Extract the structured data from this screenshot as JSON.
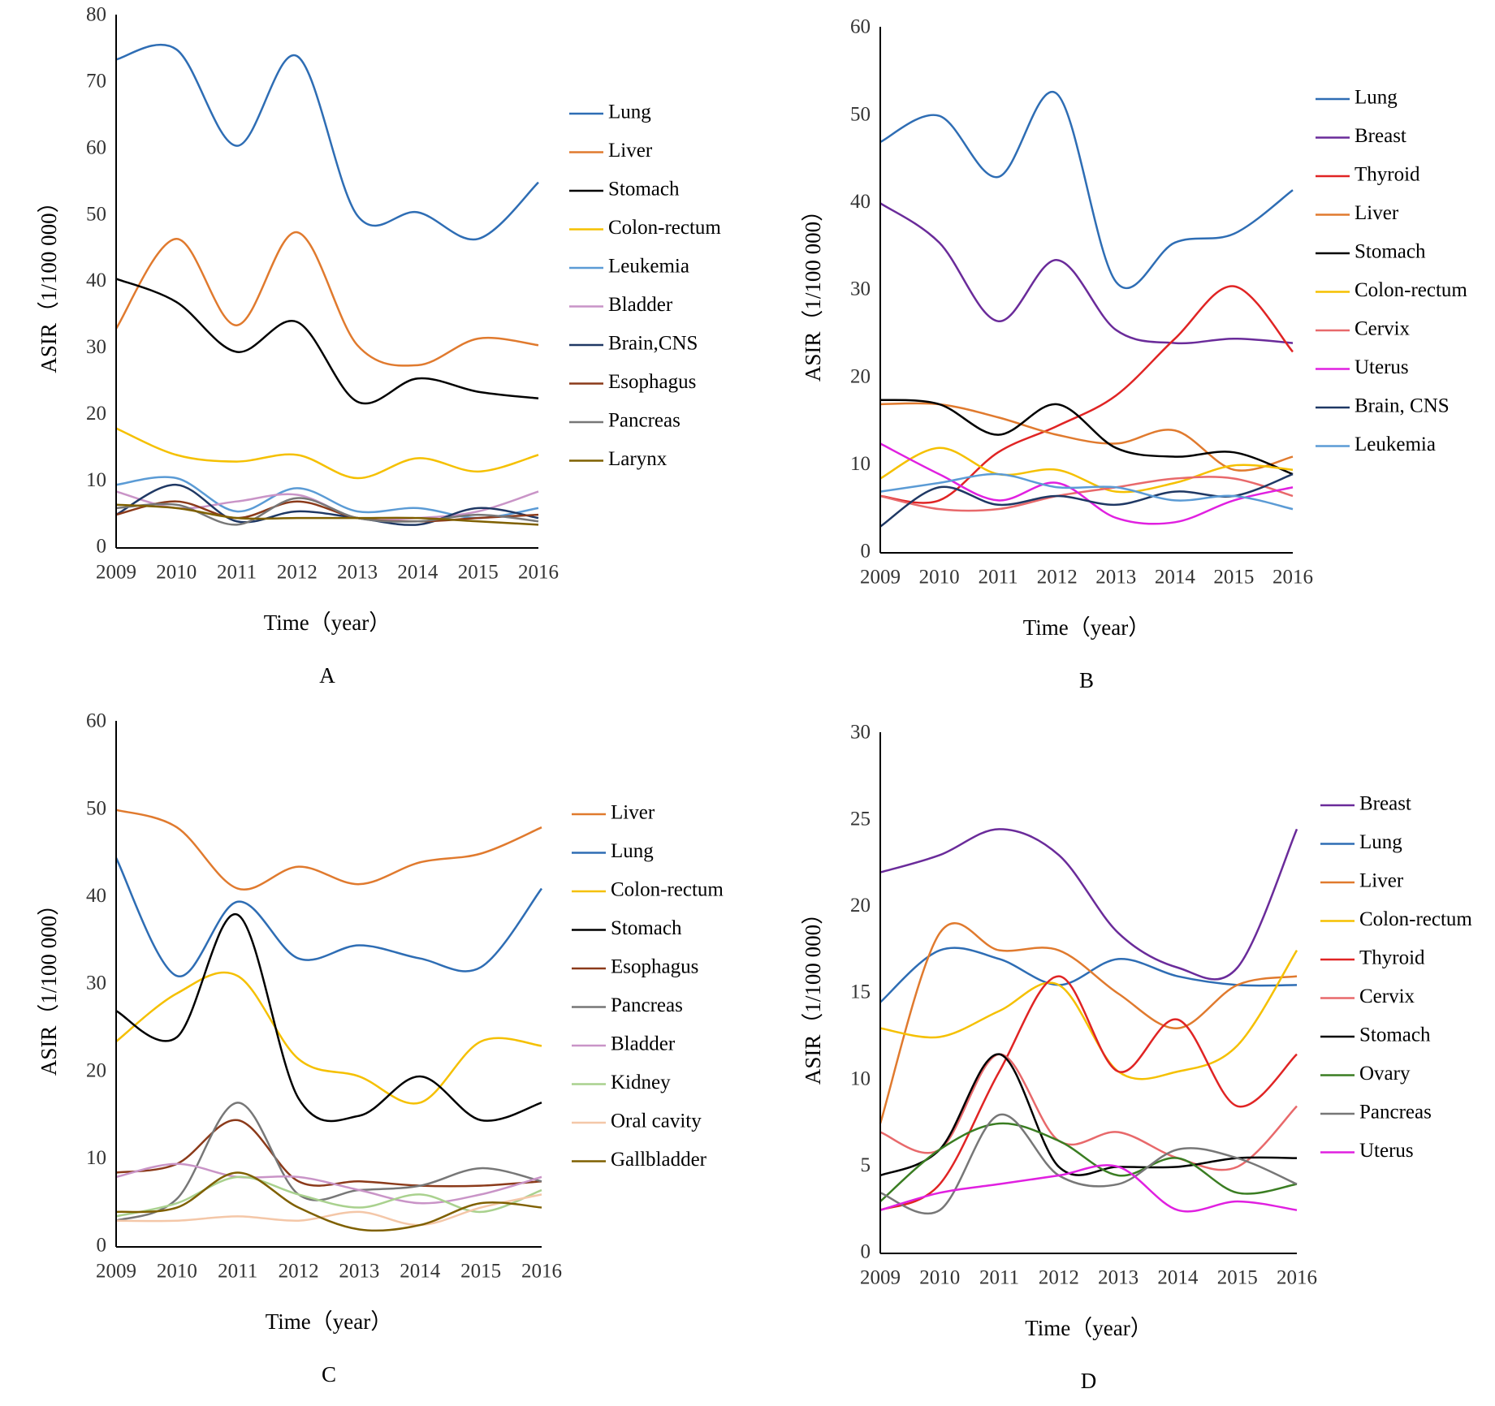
{
  "chart_data": [
    {
      "type": "line",
      "label": "A",
      "y_label": "ASIR（1/100 000）",
      "x_label": "Time（year）",
      "categories": [
        "2009",
        "2010",
        "2011",
        "2012",
        "2013",
        "2014",
        "2015",
        "2016"
      ],
      "ylim": [
        0,
        80
      ],
      "yticks": [
        0,
        10,
        20,
        30,
        40,
        50,
        60,
        70,
        80
      ],
      "grid": false,
      "legend": "right",
      "series": [
        {
          "name": "Lung",
          "color": "#2e6db4",
          "values": [
            73.5,
            75,
            60.5,
            74,
            50,
            50.5,
            46.5,
            55
          ]
        },
        {
          "name": "Liver",
          "color": "#e07a2e",
          "values": [
            33,
            46.5,
            33.5,
            47.5,
            30.5,
            27.5,
            31.5,
            30.5
          ]
        },
        {
          "name": "Stomach",
          "color": "#000000",
          "values": [
            40.5,
            37,
            29.5,
            34,
            22,
            25.5,
            23.5,
            22.5
          ]
        },
        {
          "name": "Colon-rectum",
          "color": "#f5c000",
          "values": [
            18,
            14,
            13,
            14,
            10.5,
            13.5,
            11.5,
            14
          ]
        },
        {
          "name": "Leukemia",
          "color": "#5b9bd5",
          "values": [
            9.5,
            10.5,
            5.5,
            9,
            5.5,
            6,
            4.5,
            6
          ]
        },
        {
          "name": "Bladder",
          "color": "#c994c7",
          "values": [
            8.5,
            6,
            7,
            8,
            4.5,
            4.5,
            5.5,
            8.5
          ]
        },
        {
          "name": "Brain,CNS",
          "color": "#1f3864",
          "values": [
            5,
            9.5,
            4,
            5.5,
            4.5,
            3.5,
            6,
            4.5
          ]
        },
        {
          "name": "Esophagus",
          "color": "#8b3a1a",
          "values": [
            5,
            7,
            4.5,
            7,
            4.5,
            4,
            4.5,
            5
          ]
        },
        {
          "name": "Pancreas",
          "color": "#777777",
          "values": [
            6,
            6.5,
            3.5,
            7.5,
            4.5,
            4,
            5,
            4
          ]
        },
        {
          "name": "Larynx",
          "color": "#7f6000",
          "values": [
            6.5,
            6,
            4.5,
            4.5,
            4.5,
            4.5,
            4,
            3.5
          ]
        }
      ]
    },
    {
      "type": "line",
      "label": "B",
      "y_label": "ASIR（1/100 000）",
      "x_label": "Time（year）",
      "categories": [
        "2009",
        "2010",
        "2011",
        "2012",
        "2013",
        "2014",
        "2015",
        "2016"
      ],
      "ylim": [
        0,
        60
      ],
      "yticks": [
        0,
        10,
        20,
        30,
        40,
        50,
        60
      ],
      "grid": false,
      "legend": "right",
      "series": [
        {
          "name": "Lung",
          "color": "#2e6db4",
          "values": [
            47,
            50,
            43,
            52.5,
            31,
            35.5,
            36.5,
            41.5
          ]
        },
        {
          "name": "Breast",
          "color": "#6a2b9a",
          "values": [
            40,
            35.5,
            26.5,
            33.5,
            25.5,
            24,
            24.5,
            24
          ]
        },
        {
          "name": "Thyroid",
          "color": "#e02424",
          "values": [
            6.5,
            6,
            11.5,
            14.5,
            18,
            24.5,
            30.5,
            23
          ]
        },
        {
          "name": "Liver",
          "color": "#e07a2e",
          "values": [
            17,
            17,
            15.5,
            13.5,
            12.5,
            14,
            9.5,
            11
          ]
        },
        {
          "name": "Stomach",
          "color": "#000000",
          "values": [
            17.5,
            17,
            13.5,
            17,
            12,
            11,
            11.5,
            9
          ]
        },
        {
          "name": "Colon-rectum",
          "color": "#f5c000",
          "values": [
            8.5,
            12,
            9,
            9.5,
            7,
            8,
            10,
            9.5
          ]
        },
        {
          "name": "Cervix",
          "color": "#e8696b",
          "values": [
            6.5,
            5,
            5,
            6.5,
            7.5,
            8.5,
            8.5,
            6.5
          ]
        },
        {
          "name": "Uterus",
          "color": "#e020e0",
          "values": [
            12.5,
            9,
            6,
            8,
            4,
            3.5,
            6,
            7.5
          ]
        },
        {
          "name": "Brain, CNS",
          "color": "#1f3864",
          "values": [
            3,
            7.5,
            5.5,
            6.5,
            5.5,
            7,
            6.5,
            9
          ]
        },
        {
          "name": "Leukemia",
          "color": "#5b9bd5",
          "values": [
            7,
            8,
            9,
            7.5,
            7.5,
            6,
            6.5,
            5
          ]
        }
      ]
    },
    {
      "type": "line",
      "label": "C",
      "y_label": "ASIR（1/100 000）",
      "x_label": "Time（year）",
      "categories": [
        "2009",
        "2010",
        "2011",
        "2012",
        "2013",
        "2014",
        "2015",
        "2016"
      ],
      "ylim": [
        0,
        60
      ],
      "yticks": [
        0,
        10,
        20,
        30,
        40,
        50,
        60
      ],
      "grid": false,
      "legend": "right",
      "series": [
        {
          "name": "Liver",
          "color": "#e07a2e",
          "values": [
            50,
            48,
            41,
            43.5,
            41.5,
            44,
            45,
            48
          ]
        },
        {
          "name": "Lung",
          "color": "#2e6db4",
          "values": [
            44.5,
            31,
            39.5,
            33,
            34.5,
            33,
            32,
            41
          ]
        },
        {
          "name": "Colon-rectum",
          "color": "#f5c000",
          "values": [
            23.5,
            29,
            31,
            21.5,
            19.5,
            16.5,
            23.5,
            23
          ]
        },
        {
          "name": "Stomach",
          "color": "#000000",
          "values": [
            27,
            24,
            38,
            17,
            15,
            19.5,
            14.5,
            16.5
          ]
        },
        {
          "name": "Esophagus",
          "color": "#8b3a1a",
          "values": [
            8.5,
            9.5,
            14.5,
            7.5,
            7.5,
            7,
            7,
            7.5
          ]
        },
        {
          "name": "Pancreas",
          "color": "#777777",
          "values": [
            3,
            5.5,
            16.5,
            6,
            6.5,
            7,
            9,
            7.5
          ]
        },
        {
          "name": "Bladder",
          "color": "#c994c7",
          "values": [
            8,
            9.5,
            8,
            8,
            6.5,
            5,
            6,
            8
          ]
        },
        {
          "name": "Kidney",
          "color": "#a9d18e",
          "values": [
            3.5,
            5,
            8,
            6,
            4.5,
            6,
            4,
            6.5
          ]
        },
        {
          "name": "Oral cavity",
          "color": "#f4c7a8",
          "values": [
            3,
            3,
            3.5,
            3,
            4,
            2.5,
            4.5,
            6
          ]
        },
        {
          "name": "Gallbladder",
          "color": "#7f6000",
          "values": [
            4,
            4.5,
            8.5,
            4.5,
            2,
            2.5,
            5,
            4.5
          ]
        }
      ]
    },
    {
      "type": "line",
      "label": "D",
      "y_label": "ASIR（1/100 000）",
      "x_label": "Time（year）",
      "categories": [
        "2009",
        "2010",
        "2011",
        "2012",
        "2013",
        "2014",
        "2015",
        "2016"
      ],
      "ylim": [
        0,
        30
      ],
      "yticks": [
        0,
        5,
        10,
        15,
        20,
        25,
        30
      ],
      "grid": false,
      "legend": "right",
      "series": [
        {
          "name": "Breast",
          "color": "#6a2b9a",
          "values": [
            22,
            23,
            24.5,
            23,
            18.5,
            16.5,
            16.5,
            24.5
          ]
        },
        {
          "name": "Lung",
          "color": "#2e6db4",
          "values": [
            14.5,
            17.5,
            17,
            15.5,
            17,
            16,
            15.5,
            15.5
          ]
        },
        {
          "name": "Liver",
          "color": "#e07a2e",
          "values": [
            7.5,
            18.5,
            17.5,
            17.5,
            15,
            13,
            15.5,
            16
          ]
        },
        {
          "name": "Colon-rectum",
          "color": "#f5c000",
          "values": [
            13,
            12.5,
            14,
            15.5,
            10.5,
            10.5,
            12,
            17.5
          ]
        },
        {
          "name": "Thyroid",
          "color": "#e02424",
          "values": [
            2.5,
            4,
            10.5,
            16,
            10.5,
            13.5,
            8.5,
            11.5
          ]
        },
        {
          "name": "Cervix",
          "color": "#e8696b",
          "values": [
            7,
            6,
            11.5,
            6.5,
            7,
            5.5,
            5,
            8.5
          ]
        },
        {
          "name": "Stomach",
          "color": "#000000",
          "values": [
            4.5,
            6,
            11.5,
            5,
            5,
            5,
            5.5,
            5.5
          ]
        },
        {
          "name": "Ovary",
          "color": "#3a7d22",
          "values": [
            3,
            6,
            7.5,
            6.5,
            4.5,
            5.5,
            3.5,
            4
          ]
        },
        {
          "name": "Pancreas",
          "color": "#777777",
          "values": [
            3.5,
            2.5,
            8,
            4.5,
            4,
            6,
            5.5,
            4
          ]
        },
        {
          "name": "Uterus",
          "color": "#e020e0",
          "values": [
            2.5,
            3.5,
            4,
            4.5,
            5,
            2.5,
            3,
            2.5
          ]
        }
      ]
    }
  ]
}
